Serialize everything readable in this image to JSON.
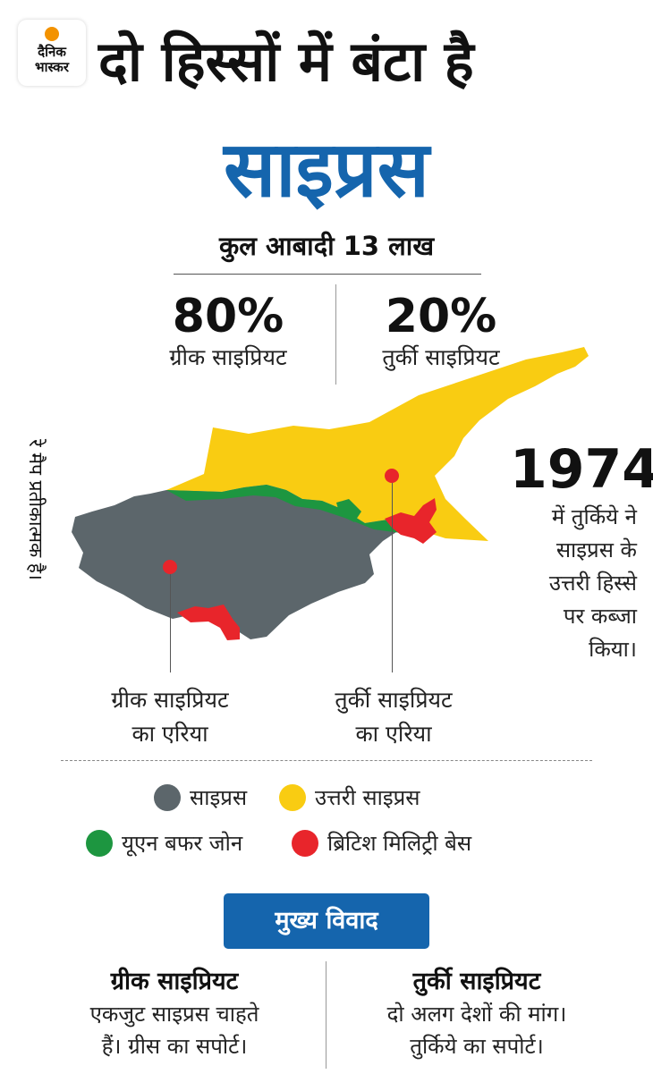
{
  "logo": {
    "line1": "दैनिक",
    "line2": "भास्कर"
  },
  "title": {
    "line1": "दो हिस्सों में बंटा है",
    "line2": "साइप्रस"
  },
  "population": "कुल आबादी 13 लाख",
  "stats": [
    {
      "value": "80%",
      "label": "ग्रीक साइप्रियट"
    },
    {
      "value": "20%",
      "label": "तुर्की साइप्रियट"
    }
  ],
  "side_note": "रे मैप प्रतीकात्मक है।",
  "event": {
    "year": "1974",
    "lines": [
      "में तुर्किये ने",
      "साइप्रस के",
      "उत्तरी हिस्से",
      "पर कब्जा",
      "किया।"
    ]
  },
  "areas": {
    "greek": {
      "line1": "ग्रीक साइप्रियट",
      "line2": "का एरिया"
    },
    "turkish": {
      "line1": "तुर्की साइप्रियट",
      "line2": "का एरिया"
    }
  },
  "legend": [
    {
      "label": "साइप्रस",
      "color": "#5c666b"
    },
    {
      "label": "उत्तरी साइप्रस",
      "color": "#f9cc12"
    },
    {
      "label": "यूएन बफर जोन",
      "color": "#1d9640"
    },
    {
      "label": "ब्रिटिश मिलिट्री बेस",
      "color": "#e8252b"
    }
  ],
  "dispute": {
    "label": "मुख्य विवाद",
    "greek": {
      "heading": "ग्रीक साइप्रियट",
      "line1": "एकजुट साइप्रस चाहते",
      "line2": "हैं। ग्रीस का सपोर्ट।"
    },
    "turkish": {
      "heading": "तुर्की साइप्रियट",
      "line1": "दो अलग देशों की मांग।",
      "line2": "तुर्किये का सपोर्ट।"
    }
  },
  "colors": {
    "accent": "#1565ad",
    "logo_dot": "#f39200",
    "pin": "#e8252b"
  }
}
